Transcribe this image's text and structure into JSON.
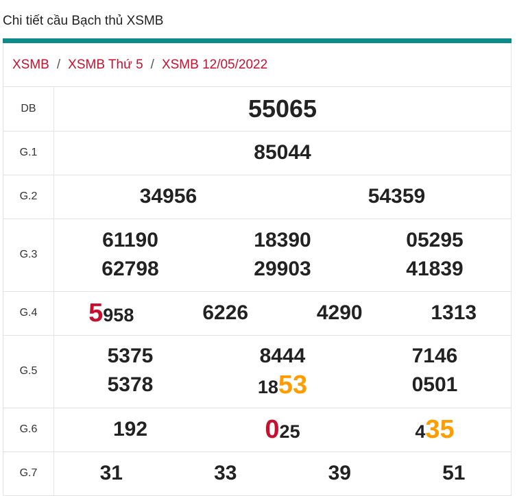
{
  "page_title": "Chi tiết cầu Bạch thủ XSMB",
  "breadcrumb": [
    {
      "label": "XSMB"
    },
    {
      "label": "XSMB Thứ 5"
    },
    {
      "label": "XSMB 12/05/2022"
    }
  ],
  "separator": "/",
  "colors": {
    "teal": "#0d8a8a",
    "red": "#c8102e",
    "orange": "#ff9d00"
  },
  "prizes": {
    "db": {
      "label": "DB",
      "value": "55065"
    },
    "g1": {
      "label": "G.1",
      "values": [
        "85044"
      ]
    },
    "g2": {
      "label": "G.2",
      "values": [
        "34956",
        "54359"
      ]
    },
    "g3": {
      "label": "G.3",
      "values": [
        "61190",
        "18390",
        "05295",
        "62798",
        "29903",
        "41839"
      ]
    },
    "g4": {
      "label": "G.4",
      "first_lead": "5",
      "first_rest": "958",
      "values": [
        "6226",
        "4290",
        "1313"
      ]
    },
    "g5": {
      "label": "G.5",
      "values": [
        "5375",
        "8444",
        "7146",
        "5378"
      ],
      "fifth_pre": "18",
      "fifth_hl": "53",
      "sixth": "0501"
    },
    "g6": {
      "label": "G.6",
      "first": "192",
      "second_lead": "0",
      "second_rest": "25",
      "third_pre": "4",
      "third_hl": "35"
    },
    "g7": {
      "label": "G.7",
      "values": [
        "31",
        "33",
        "39",
        "51"
      ]
    }
  }
}
